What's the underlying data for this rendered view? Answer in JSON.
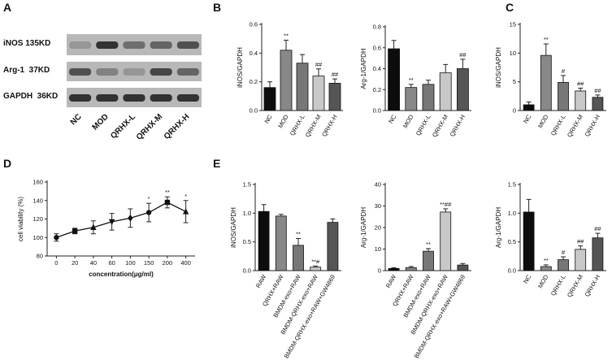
{
  "panel_letters": [
    "A",
    "B",
    "C",
    "D",
    "E"
  ],
  "blot": {
    "rows": [
      "iNOS 135KD",
      "Arg-1  37KD",
      "GAPDH  36KD"
    ],
    "lanes": [
      "NC",
      "MOD",
      "QRHX-L",
      "QRHX-M",
      "QRHX-H"
    ],
    "intensity": [
      [
        0.35,
        0.85,
        0.55,
        0.6,
        0.7
      ],
      [
        0.7,
        0.45,
        0.35,
        0.75,
        0.6
      ],
      [
        0.85,
        0.85,
        0.85,
        0.85,
        0.85
      ]
    ]
  },
  "chart_data": [
    {
      "id": "B1",
      "type": "bar",
      "categories": [
        "NC",
        "MOD",
        "QRHX-L",
        "QRHX-M",
        "QRHX-H"
      ],
      "values": [
        0.16,
        0.42,
        0.33,
        0.24,
        0.19
      ],
      "errors": [
        0.04,
        0.07,
        0.06,
        0.05,
        0.03
      ],
      "annotations": [
        "",
        "**",
        "",
        "##",
        "##"
      ],
      "fills": [
        "#0d0d0d",
        "#888888",
        "#777777",
        "#c8c8c8",
        "#555555"
      ],
      "ylabel": "iNOS/GAPDH",
      "ylim": [
        0,
        0.6
      ],
      "yticks": [
        0.0,
        0.2,
        0.4,
        0.6
      ],
      "tick_labels": [
        "0.0",
        "0.2",
        "0.4",
        "0.6"
      ]
    },
    {
      "id": "B2",
      "type": "bar",
      "categories": [
        "NC",
        "MOD",
        "QRHX-L",
        "QRHX-M",
        "QRHX-H"
      ],
      "values": [
        0.59,
        0.22,
        0.25,
        0.36,
        0.4
      ],
      "errors": [
        0.08,
        0.03,
        0.04,
        0.08,
        0.09
      ],
      "annotations": [
        "",
        "**",
        "",
        "",
        "##"
      ],
      "fills": [
        "#0d0d0d",
        "#888888",
        "#777777",
        "#c8c8c8",
        "#555555"
      ],
      "ylabel": "Arg-1/GAPDH",
      "ylim": [
        0,
        0.8
      ],
      "yticks": [
        0.0,
        0.2,
        0.4,
        0.6,
        0.8
      ],
      "tick_labels": [
        "0.0",
        "0.2",
        "0.4",
        "0.6",
        "0.8"
      ]
    },
    {
      "id": "C",
      "type": "bar",
      "categories": [
        "NC",
        "MOD",
        "QRHX-L",
        "QRHX-M",
        "QRHX-H"
      ],
      "values": [
        1.0,
        9.6,
        4.9,
        3.4,
        2.3
      ],
      "errors": [
        0.5,
        2.0,
        1.2,
        0.5,
        0.4
      ],
      "annotations": [
        "",
        "**",
        "#",
        "##",
        "##"
      ],
      "fills": [
        "#0d0d0d",
        "#888888",
        "#777777",
        "#c8c8c8",
        "#555555"
      ],
      "ylabel": "iNOS/GAPDH",
      "ylim": [
        0,
        15
      ],
      "yticks": [
        0,
        5,
        10,
        15
      ],
      "tick_labels": [
        "0",
        "5",
        "10",
        "15"
      ]
    },
    {
      "id": "D",
      "type": "line",
      "categories": [
        "0",
        "20",
        "40",
        "60",
        "100",
        "150",
        "200",
        "400"
      ],
      "values": [
        100,
        107,
        111,
        117,
        121,
        127,
        138,
        128
      ],
      "errors": [
        4,
        3,
        7,
        9,
        10,
        10,
        6,
        12
      ],
      "annotations": [
        "",
        "",
        "",
        "",
        "",
        "*",
        "**",
        "*"
      ],
      "markers": [
        "circle",
        "square",
        "triangle",
        "inverted-triangle",
        "diamond",
        "circle",
        "square",
        "triangle"
      ],
      "xlabel": "concentration(μg/ml)",
      "ylabel": "cell viability (%)",
      "ylim": [
        80,
        160
      ],
      "yticks": [
        80,
        100,
        120,
        140,
        160
      ],
      "tick_labels": [
        "80",
        "100",
        "120",
        "140",
        "160"
      ]
    },
    {
      "id": "E1",
      "type": "bar",
      "categories": [
        "RAW",
        "QRHX+RAW",
        "BMDM-exo+RAW",
        "BMDM-QRHX-exo+RAW",
        "BMDM-QRHX-exo+RAW+GW4869"
      ],
      "values": [
        1.03,
        0.95,
        0.44,
        0.06,
        0.84
      ],
      "errors": [
        0.12,
        0.03,
        0.12,
        0.02,
        0.06
      ],
      "annotations": [
        "",
        "",
        "**",
        "**#",
        ""
      ],
      "fills": [
        "#0d0d0d",
        "#888888",
        "#777777",
        "#c8c8c8",
        "#555555"
      ],
      "ylabel": "iNOS/GAPDH",
      "ylim": [
        0,
        1.5
      ],
      "yticks": [
        0.0,
        0.5,
        1.0,
        1.5
      ],
      "tick_labels": [
        "0.0",
        "0.5",
        "1.0",
        "1.5"
      ]
    },
    {
      "id": "E2",
      "type": "bar",
      "categories": [
        "RAW",
        "QRHX+RAW",
        "BMDM-exo+RAW",
        "BMDM-QRHX-exo+RAW",
        "BMDM-QRHX-exo+RAW+GW4869"
      ],
      "values": [
        1.0,
        1.4,
        9.0,
        27.2,
        2.6
      ],
      "errors": [
        0.3,
        0.5,
        1.2,
        1.5,
        0.7
      ],
      "annotations": [
        "",
        "",
        "**",
        "**##",
        ""
      ],
      "fills": [
        "#0d0d0d",
        "#888888",
        "#777777",
        "#c8c8c8",
        "#555555"
      ],
      "ylabel": "Arg-1/GAPDH",
      "ylim": [
        0,
        40
      ],
      "yticks": [
        0,
        10,
        20,
        30,
        40
      ],
      "tick_labels": [
        "0",
        "10",
        "20",
        "30",
        "40"
      ]
    },
    {
      "id": "E3",
      "type": "bar",
      "categories": [
        "NC",
        "MOD",
        "QRHX-L",
        "QRHX-M",
        "QRHX-H"
      ],
      "values": [
        1.02,
        0.07,
        0.19,
        0.37,
        0.57
      ],
      "errors": [
        0.22,
        0.03,
        0.05,
        0.06,
        0.08
      ],
      "annotations": [
        "",
        "**",
        "#",
        "##",
        "##"
      ],
      "fills": [
        "#0d0d0d",
        "#888888",
        "#777777",
        "#c8c8c8",
        "#555555"
      ],
      "ylabel": "Arg-1/GAPDH",
      "ylim": [
        0,
        1.5
      ],
      "yticks": [
        0.0,
        0.5,
        1.0,
        1.5
      ],
      "tick_labels": [
        "0.0",
        "0.5",
        "1.0",
        "1.5"
      ]
    }
  ]
}
